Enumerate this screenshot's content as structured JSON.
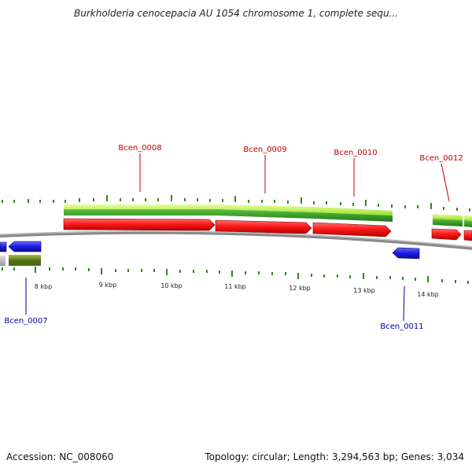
{
  "title": "Burkholderia cenocepacia AU 1054 chromosome 1, complete sequ...",
  "footer": {
    "accession": "Accession: NC_008060",
    "summary": "Topology: circular; Length: 3,294,563 bp; Genes: 3,034"
  },
  "colors": {
    "forward_gene": "#ff1a1a",
    "reverse_gene": "#1f1fe8",
    "cds_light": "#b9f04a",
    "cds_dark": "#2f9a2a",
    "olive_feature": "#6b8a26",
    "backbone": "#8a8a8a",
    "tick": "#2e8a1c",
    "label_forward": "#c00000",
    "label_reverse": "#0000a8"
  },
  "axis": {
    "unit": "kbp",
    "ticks": [
      "8 kbp",
      "9 kbp",
      "10 kbp",
      "11 kbp",
      "12 kbp",
      "13 kbp",
      "14 kbp"
    ]
  },
  "genes": [
    {
      "label": "Bcen_0007",
      "strand": "reverse"
    },
    {
      "label": "Bcen_0008",
      "strand": "forward"
    },
    {
      "label": "Bcen_0009",
      "strand": "forward"
    },
    {
      "label": "Bcen_0010",
      "strand": "forward"
    },
    {
      "label": "Bcen_0011",
      "strand": "reverse"
    },
    {
      "label": "Bcen_0012",
      "strand": "forward"
    }
  ]
}
